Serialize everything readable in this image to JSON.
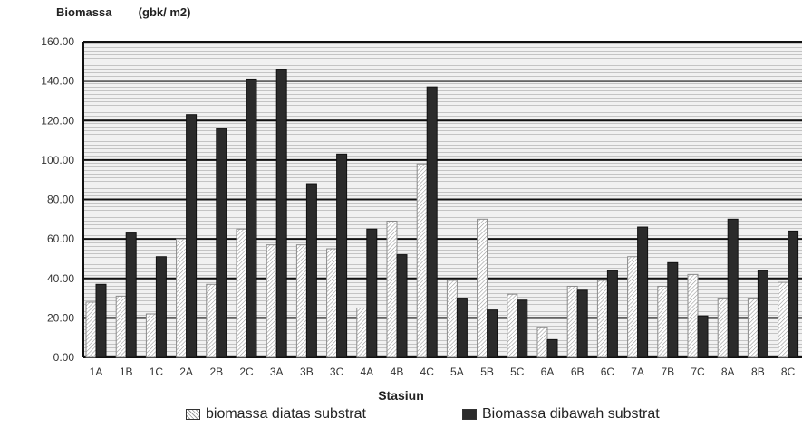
{
  "chart_data": {
    "type": "bar",
    "ylabel": "Biomassa",
    "yunit": "(gbk/ m2)",
    "xlabel": "Stasiun",
    "ylim": [
      0,
      160
    ],
    "yticks": [
      "0.00",
      "20.00",
      "40.00",
      "60.00",
      "80.00",
      "100.00",
      "120.00",
      "140.00",
      "160.00"
    ],
    "grid": true,
    "legend_position": "bottom",
    "categories": [
      "1A",
      "1B",
      "1C",
      "2A",
      "2B",
      "2C",
      "3A",
      "3B",
      "3C",
      "4A",
      "4B",
      "4C",
      "5A",
      "5B",
      "5C",
      "6A",
      "6B",
      "6C",
      "7A",
      "7B",
      "7C",
      "8A",
      "8B",
      "8C"
    ],
    "series": [
      {
        "name": "biomassa diatas substrat",
        "color": "#dcdcdc",
        "values": [
          28,
          31,
          22,
          60,
          37,
          65,
          57,
          57,
          55,
          25,
          69,
          98,
          39,
          70,
          32,
          15,
          36,
          39,
          51,
          36,
          42,
          30,
          30,
          38
        ]
      },
      {
        "name": "Biomassa dibawah substrat",
        "color": "#2b2b2b",
        "values": [
          37,
          63,
          51,
          123,
          116,
          141,
          146,
          88,
          103,
          65,
          52,
          137,
          30,
          24,
          29,
          9,
          34,
          44,
          66,
          48,
          21,
          70,
          44,
          64
        ]
      }
    ]
  }
}
